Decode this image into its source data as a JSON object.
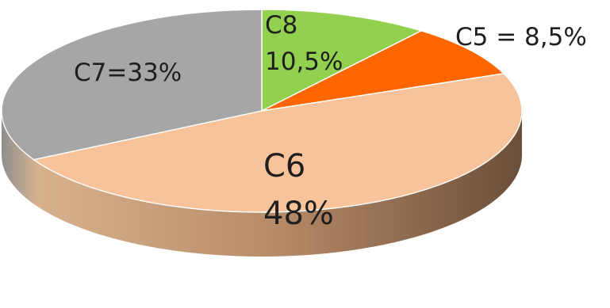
{
  "chart_data": {
    "type": "pie",
    "variant": "3d",
    "slices": [
      {
        "category": "C8",
        "value": 10.5,
        "label": "C8 10,5%",
        "label_lines": [
          "C8",
          "10,5%"
        ],
        "color": "#92D050"
      },
      {
        "category": "C5",
        "value": 8.5,
        "label": "C5 = 8,5%",
        "label_lines": [
          "C5 = 8,5%"
        ],
        "color": "#FF6600"
      },
      {
        "category": "C6",
        "value": 48,
        "label": "C6 48%",
        "label_lines": [
          "C6",
          "48%"
        ],
        "color": "#F8C39B"
      },
      {
        "category": "C7",
        "value": 33,
        "label": "C7=33%",
        "label_lines": [
          "C7=33%"
        ],
        "color": "#A6A6A6"
      }
    ],
    "title": "",
    "legend": "none"
  }
}
